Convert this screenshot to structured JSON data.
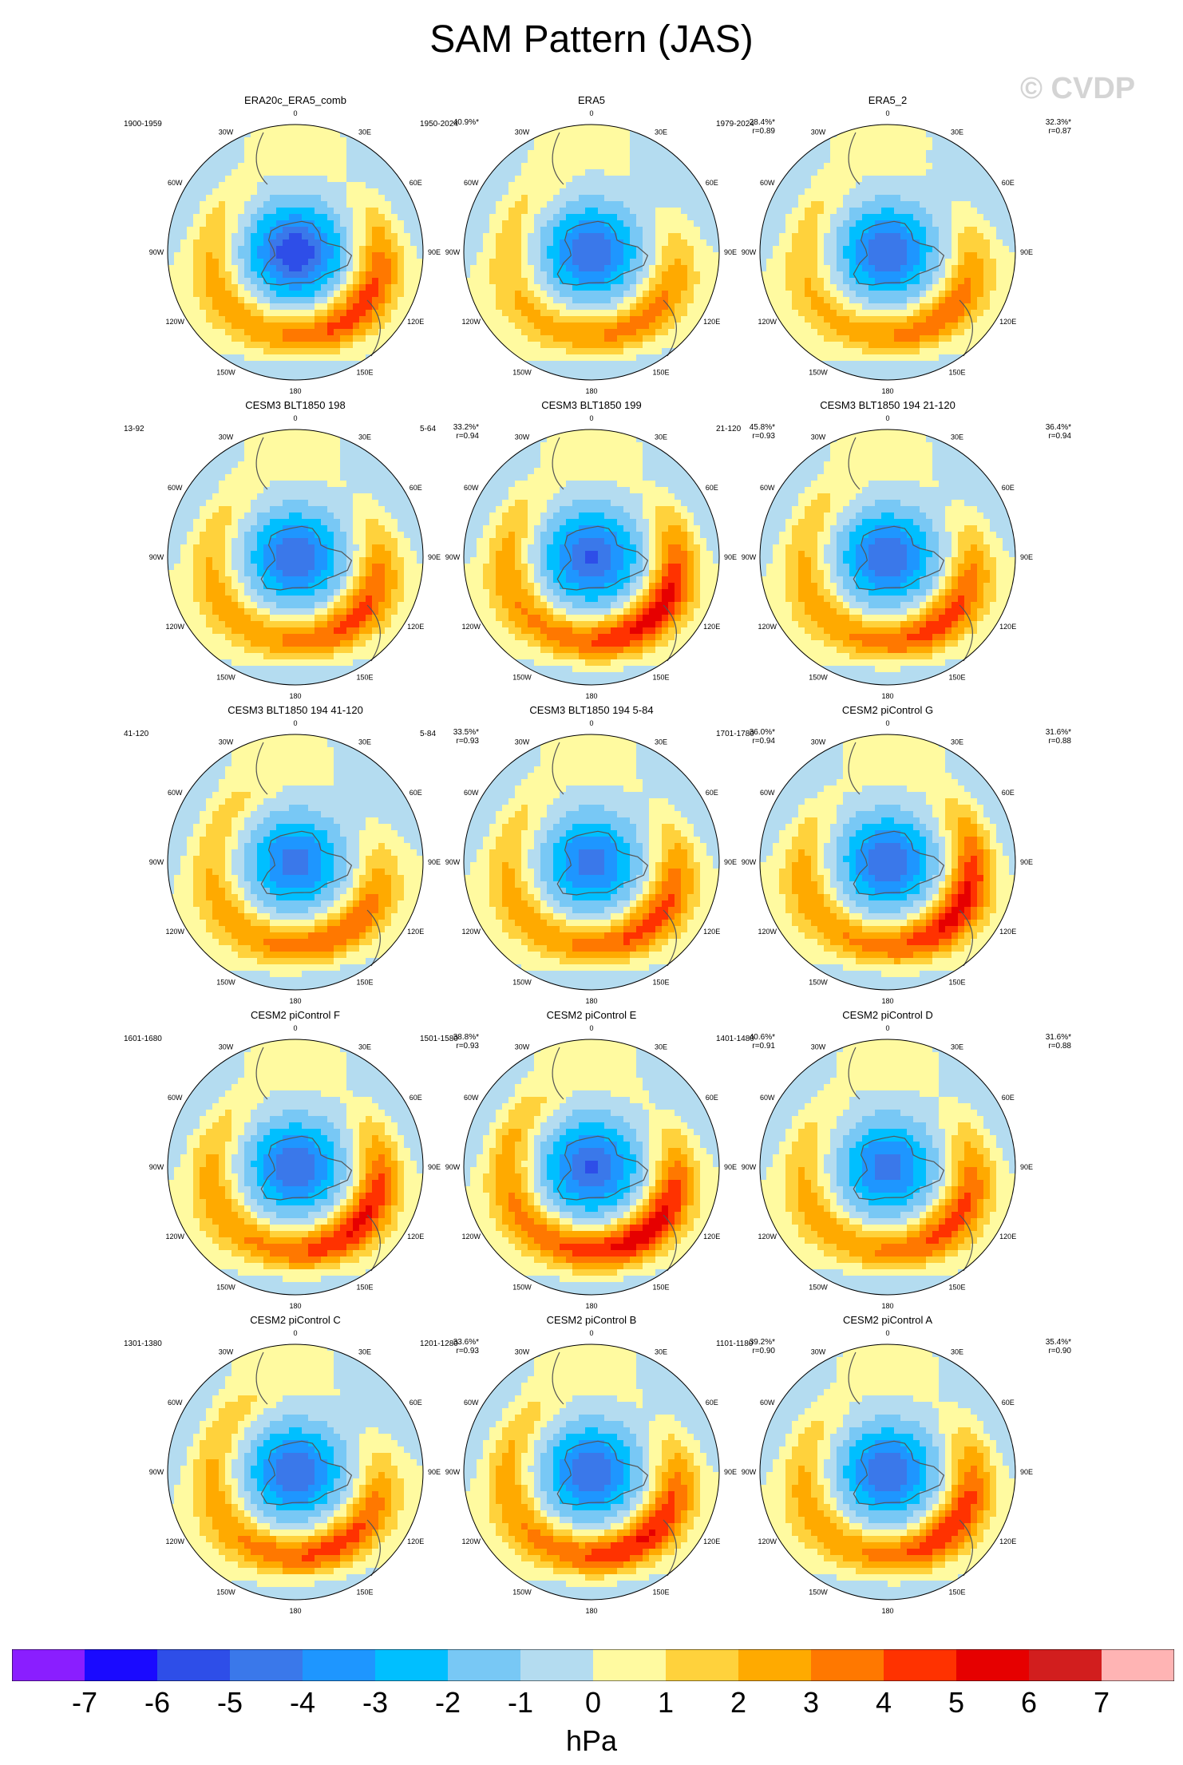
{
  "title": "SAM Pattern (JAS)",
  "watermark": "© CVDP",
  "lon_labels": [
    "0",
    "30E",
    "60E",
    "90E",
    "120E",
    "150E",
    "180",
    "150W",
    "120W",
    "90W",
    "60W",
    "30W"
  ],
  "panels": [
    {
      "title": "ERA20c_ERA5_comb",
      "period": "1900-1959",
      "pct": "40.9%*",
      "r": "",
      "amp": 0.9,
      "lonmin": 0.2,
      "rot": 0
    },
    {
      "title": "ERA5",
      "period": "1950-2024",
      "pct": "28.4%*",
      "r": "r=0.89",
      "amp": 0.75,
      "lonmin": 0.15,
      "rot": 15
    },
    {
      "title": "ERA5_2",
      "period": "1979-2024",
      "pct": "32.3%*",
      "r": "r=0.87",
      "amp": 0.75,
      "lonmin": 0.2,
      "rot": 10
    },
    {
      "title": "CESM3 BLT1850 198",
      "period": "13-92",
      "pct": "33.2%*",
      "r": "r=0.94",
      "amp": 0.75,
      "lonmin": 0.35,
      "rot": 5
    },
    {
      "title": "CESM3 BLT1850 199",
      "period": "5-64",
      "pct": "45.8%*",
      "r": "r=0.93",
      "amp": 0.8,
      "lonmin": 0.55,
      "rot": 0
    },
    {
      "title": "CESM3 BLT1850 194 21-120",
      "period": "21-120",
      "pct": "36.4%*",
      "r": "r=0.94",
      "amp": 0.75,
      "lonmin": 0.4,
      "rot": 10
    },
    {
      "title": "CESM3 BLT1850 194 41-120",
      "period": "41-120",
      "pct": "33.5%*",
      "r": "r=0.93",
      "amp": 0.7,
      "lonmin": 0.35,
      "rot": 20
    },
    {
      "title": "CESM3 BLT1850 194 5-84",
      "period": "5-84",
      "pct": "36.0%*",
      "r": "r=0.94",
      "amp": 0.7,
      "lonmin": 0.45,
      "rot": 5
    },
    {
      "title": "CESM2 piControl G",
      "period": "1701-1780",
      "pct": "31.6%*",
      "r": "r=0.88",
      "amp": 0.75,
      "lonmin": 0.6,
      "rot": -10
    },
    {
      "title": "CESM2 piControl F",
      "period": "1601-1680",
      "pct": "38.8%*",
      "r": "r=0.93",
      "amp": 0.75,
      "lonmin": 0.55,
      "rot": 0
    },
    {
      "title": "CESM2 piControl E",
      "period": "1501-1580",
      "pct": "40.6%*",
      "r": "r=0.91",
      "amp": 0.8,
      "lonmin": 0.6,
      "rot": 10
    },
    {
      "title": "CESM2 piControl D",
      "period": "1401-1480",
      "pct": "31.6%*",
      "r": "r=0.88",
      "amp": 0.7,
      "lonmin": 0.45,
      "rot": 0
    },
    {
      "title": "CESM2 piControl C",
      "period": "1301-1380",
      "pct": "33.6%*",
      "r": "r=0.93",
      "amp": 0.75,
      "lonmin": 0.4,
      "rot": 20
    },
    {
      "title": "CESM2 piControl B",
      "period": "1201-1280",
      "pct": "39.2%*",
      "r": "r=0.90",
      "amp": 0.75,
      "lonmin": 0.55,
      "rot": 10
    },
    {
      "title": "CESM2 piControl A",
      "period": "1101-1180",
      "pct": "35.4%*",
      "r": "r=0.90",
      "amp": 0.75,
      "lonmin": 0.45,
      "rot": 0
    }
  ],
  "colorbar": {
    "colors": [
      "#8a1eff",
      "#1a0aff",
      "#2e4ee8",
      "#3a78ea",
      "#1e96ff",
      "#00bfff",
      "#78c8f5",
      "#b4dcf0",
      "#fffaa0",
      "#ffd23c",
      "#ffaa00",
      "#ff7800",
      "#ff3200",
      "#e60000",
      "#d21e1e",
      "#ffb4b4"
    ],
    "labels": [
      "-7",
      "-6",
      "-5",
      "-4",
      "-3",
      "-2",
      "-1",
      "0",
      "1",
      "2",
      "3",
      "4",
      "5",
      "6",
      "7"
    ],
    "units": "hPa"
  }
}
